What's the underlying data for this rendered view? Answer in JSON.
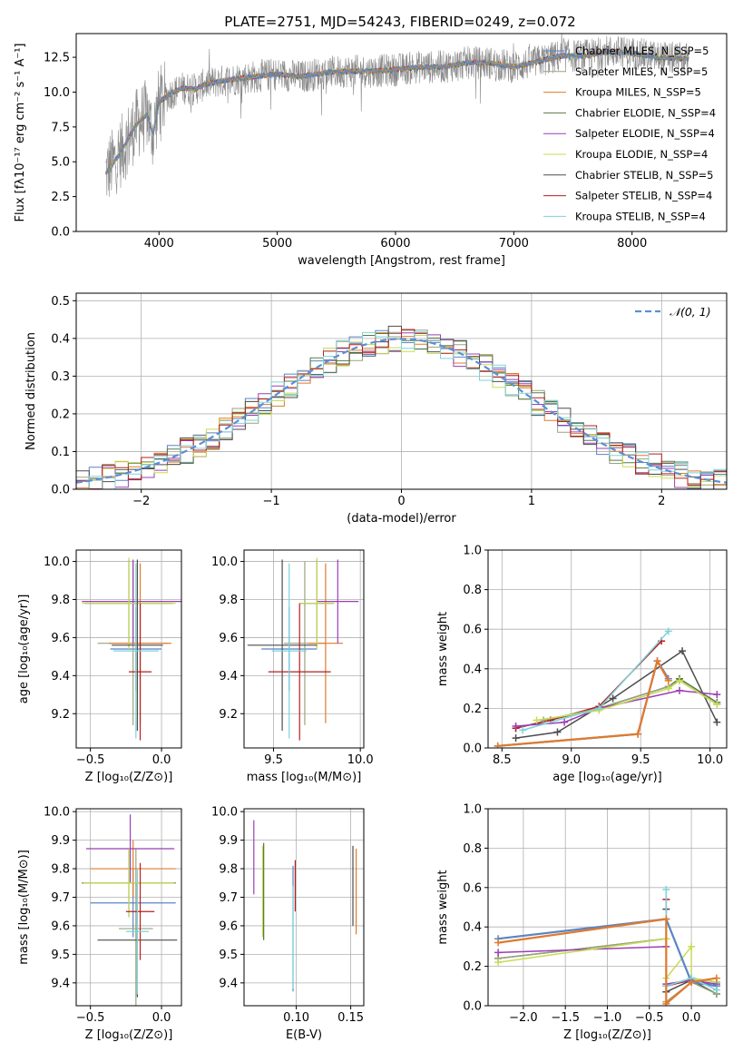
{
  "title": "PLATE=2751, MJD=54243, FIBERID=0249, z=0.072",
  "model_colors": [
    "#5b84c4",
    "#9aa37d",
    "#e07a2c",
    "#5a7a45",
    "#9b3fb5",
    "#c8db55",
    "#4d4d4d",
    "#b61f1f",
    "#7dd3dc"
  ],
  "gauss_color": "#5b8fd6",
  "chart_data": [
    {
      "type": "line",
      "panel": "spectrum",
      "xlabel": "wavelength [Angstrom, rest frame]",
      "ylabel": "Flux [fλ10⁻¹⁷ erg cm⁻² s⁻¹ A⁻¹]",
      "xlim": [
        3300,
        8800
      ],
      "ylim": [
        0,
        14.2
      ],
      "xticks": [
        4000,
        5000,
        6000,
        7000,
        8000
      ],
      "yticks": [
        0.0,
        2.5,
        5.0,
        7.5,
        10.0,
        12.5
      ],
      "ytick_labels": [
        "0.0",
        "2.5",
        "5.0",
        "7.5",
        "10.0",
        "12.5"
      ],
      "legend_position": "lower-right",
      "legend": [
        "Chabrier MILES, N_SSP=5",
        "Salpeter MILES, N_SSP=5",
        "Kroupa MILES, N_SSP=5",
        "Chabrier ELODIE, N_SSP=4",
        "Salpeter ELODIE, N_SSP=4",
        "Kroupa ELODIE, N_SSP=4",
        "Chabrier STELIB, N_SSP=5",
        "Salpeter STELIB, N_SSP=4",
        "Kroupa STELIB, N_SSP=4"
      ],
      "model_curve": {
        "x": [
          3550,
          3620,
          3700,
          3800,
          3900,
          3950,
          4000,
          4100,
          4200,
          4300,
          4400,
          4600,
          4800,
          5000,
          5200,
          5400,
          5600,
          5800,
          6000,
          6200,
          6400,
          6600,
          6800,
          7000,
          7200,
          7400,
          7600,
          7800,
          8000,
          8200,
          8400
        ],
        "y": [
          4.2,
          5.0,
          6.0,
          7.6,
          8.4,
          7.0,
          9.3,
          9.9,
          10.3,
          10.2,
          10.6,
          10.9,
          11.1,
          11.3,
          11.1,
          11.4,
          11.5,
          11.5,
          11.6,
          11.8,
          11.8,
          12.1,
          12.1,
          11.8,
          12.2,
          12.6,
          12.6,
          12.9,
          12.8,
          12.5,
          12.4
        ]
      },
      "data_noise": 1.2
    },
    {
      "type": "line",
      "panel": "residual histogram",
      "xlabel": "(data-model)/error",
      "ylabel": "Normed distribution",
      "xlim": [
        -2.5,
        2.5
      ],
      "ylim": [
        0,
        0.52
      ],
      "xticks": [
        -2,
        -1,
        0,
        1,
        2
      ],
      "xtick_labels": [
        "−2",
        "−1",
        "0",
        "1",
        "2"
      ],
      "yticks": [
        0.0,
        0.1,
        0.2,
        0.3,
        0.4,
        0.5
      ],
      "ytick_labels": [
        "0.0",
        "0.1",
        "0.2",
        "0.3",
        "0.4",
        "0.5"
      ],
      "legend": [
        "𝒩(0, 1)"
      ],
      "legend_position": "top-right",
      "bin_width": 0.1,
      "jitter": 0.035
    },
    {
      "type": "scatter",
      "panel": "age vs Z",
      "xlabel": "Z [log₁₀(Z/Z⊙)]",
      "ylabel": "age  [log₁₀(age/yr)]",
      "xlim": [
        -0.6,
        0.14
      ],
      "ylim": [
        9.02,
        10.06
      ],
      "xticks": [
        -0.5,
        0.0
      ],
      "xtick_labels": [
        "−0.5",
        "0.0"
      ],
      "yticks": [
        9.2,
        9.4,
        9.6,
        9.8,
        10.0
      ],
      "ytick_labels": [
        "9.2",
        "9.4",
        "9.6",
        "9.8",
        "10.0"
      ],
      "points": [
        {
          "x": -0.18,
          "y": 9.54,
          "xerr": 0.18,
          "yerr": 0.22
        },
        {
          "x": -0.2,
          "y": 9.57,
          "xerr": 0.25,
          "yerr": 0.43
        },
        {
          "x": -0.15,
          "y": 9.57,
          "xerr": 0.22,
          "yerr": 0.42
        },
        {
          "x": -0.23,
          "y": 9.78,
          "xerr": 0.31,
          "yerr": 0.23
        },
        {
          "x": -0.2,
          "y": 9.79,
          "xerr": 0.36,
          "yerr": 0.22
        },
        {
          "x": -0.23,
          "y": 9.78,
          "xerr": 0.33,
          "yerr": 0.24
        },
        {
          "x": -0.17,
          "y": 9.56,
          "xerr": 0.18,
          "yerr": 0.45
        },
        {
          "x": -0.15,
          "y": 9.42,
          "xerr": 0.08,
          "yerr": 0.36
        },
        {
          "x": -0.18,
          "y": 9.53,
          "xerr": 0.16,
          "yerr": 0.46
        }
      ]
    },
    {
      "type": "scatter",
      "panel": "age vs mass",
      "xlabel": "mass [log₁₀(M/M⊙)]",
      "ylabel": "",
      "xlim": [
        9.33,
        10.02
      ],
      "ylim": [
        9.02,
        10.06
      ],
      "xticks": [
        9.5,
        10.0
      ],
      "xtick_labels": [
        "9.5",
        "10.0"
      ],
      "yticks": [
        9.2,
        9.4,
        9.6,
        9.8,
        10.0
      ],
      "ytick_labels": [
        "9.2",
        "9.4",
        "9.6",
        "9.8",
        "10.0"
      ],
      "points": [
        {
          "x": 9.59,
          "y": 9.54,
          "xerr": 0.16,
          "yerr": 0.22
        },
        {
          "x": 9.68,
          "y": 9.57,
          "xerr": 0.12,
          "yerr": 0.43
        },
        {
          "x": 9.8,
          "y": 9.57,
          "xerr": 0.1,
          "yerr": 0.42
        },
        {
          "x": 9.75,
          "y": 9.78,
          "xerr": 0.1,
          "yerr": 0.23
        },
        {
          "x": 9.87,
          "y": 9.79,
          "xerr": 0.12,
          "yerr": 0.22
        },
        {
          "x": 9.75,
          "y": 9.78,
          "xerr": 0.1,
          "yerr": 0.24
        },
        {
          "x": 9.55,
          "y": 9.56,
          "xerr": 0.2,
          "yerr": 0.45
        },
        {
          "x": 9.65,
          "y": 9.42,
          "xerr": 0.18,
          "yerr": 0.36
        },
        {
          "x": 9.59,
          "y": 9.53,
          "xerr": 0.1,
          "yerr": 0.46
        }
      ]
    },
    {
      "type": "line",
      "panel": "mass weight vs age",
      "xlabel": "age  [log₁₀(age/yr)]",
      "ylabel": "mass weight",
      "xlim": [
        8.4,
        10.12
      ],
      "ylim": [
        0,
        1.0
      ],
      "xticks": [
        8.5,
        9.0,
        9.5,
        10.0
      ],
      "xtick_labels": [
        "8.5",
        "9.0",
        "9.5",
        "10.0"
      ],
      "yticks": [
        0.0,
        0.2,
        0.4,
        0.6,
        0.8,
        1.0
      ],
      "ytick_labels": [
        "0.0",
        "0.2",
        "0.4",
        "0.6",
        "0.8",
        "1.0"
      ],
      "series": [
        {
          "x": [
            8.47,
            9.48,
            9.62,
            9.7
          ],
          "y": [
            0.01,
            0.07,
            0.44,
            0.35
          ]
        },
        {
          "x": [
            8.8,
            9.2,
            9.7,
            9.78,
            10.05
          ],
          "y": [
            0.14,
            0.2,
            0.31,
            0.34,
            0.22
          ]
        },
        {
          "x": [
            8.47,
            9.48,
            9.62,
            9.7
          ],
          "y": [
            0.01,
            0.07,
            0.44,
            0.34
          ]
        },
        {
          "x": [
            8.6,
            9.2,
            9.7,
            9.78,
            10.05
          ],
          "y": [
            0.1,
            0.2,
            0.31,
            0.35,
            0.23
          ]
        },
        {
          "x": [
            8.6,
            8.95,
            9.2,
            9.78,
            10.05
          ],
          "y": [
            0.11,
            0.13,
            0.2,
            0.29,
            0.27
          ]
        },
        {
          "x": [
            8.75,
            9.2,
            9.7,
            9.78,
            10.05
          ],
          "y": [
            0.14,
            0.19,
            0.3,
            0.34,
            0.22
          ]
        },
        {
          "x": [
            8.6,
            8.9,
            9.3,
            9.8,
            10.05
          ],
          "y": [
            0.05,
            0.08,
            0.25,
            0.49,
            0.13
          ]
        },
        {
          "x": [
            8.6,
            8.85,
            9.2,
            9.65
          ],
          "y": [
            0.1,
            0.14,
            0.21,
            0.54
          ]
        },
        {
          "x": [
            8.65,
            9.2,
            9.7
          ],
          "y": [
            0.09,
            0.2,
            0.59
          ]
        }
      ]
    },
    {
      "type": "scatter",
      "panel": "mass vs Z",
      "xlabel": "Z [log₁₀(Z/Z⊙)]",
      "ylabel": "mass [log₁₀(M/M⊙)]",
      "xlim": [
        -0.6,
        0.14
      ],
      "ylim": [
        9.32,
        10.01
      ],
      "xticks": [
        -0.5,
        0.0
      ],
      "xtick_labels": [
        "−0.5",
        "0.0"
      ],
      "yticks": [
        9.4,
        9.5,
        9.6,
        9.7,
        9.8,
        9.9,
        10.0
      ],
      "ytick_labels": [
        "9.4",
        "9.5",
        "9.6",
        "9.7",
        "9.8",
        "9.9",
        "10.0"
      ],
      "points": [
        {
          "x": -0.2,
          "y": 9.68,
          "xerr": 0.3,
          "yerr": 0.12
        },
        {
          "x": -0.18,
          "y": 9.59,
          "xerr": 0.12,
          "yerr": 0.28
        },
        {
          "x": -0.2,
          "y": 9.8,
          "xerr": 0.3,
          "yerr": 0.1
        },
        {
          "x": -0.23,
          "y": 9.75,
          "xerr": 0.33,
          "yerr": 0.12
        },
        {
          "x": -0.22,
          "y": 9.87,
          "xerr": 0.31,
          "yerr": 0.12
        },
        {
          "x": -0.23,
          "y": 9.75,
          "xerr": 0.32,
          "yerr": 0.12
        },
        {
          "x": -0.17,
          "y": 9.55,
          "xerr": 0.28,
          "yerr": 0.2
        },
        {
          "x": -0.15,
          "y": 9.65,
          "xerr": 0.1,
          "yerr": 0.17
        },
        {
          "x": -0.17,
          "y": 9.58,
          "xerr": 0.08,
          "yerr": 0.22
        }
      ]
    },
    {
      "type": "scatter",
      "panel": "mass vs E(B-V)",
      "xlabel": "E(B-V)",
      "ylabel": "",
      "xlim": [
        0.052,
        0.162
      ],
      "ylim": [
        9.32,
        10.01
      ],
      "xticks": [
        0.1,
        0.15
      ],
      "xtick_labels": [
        "0.10",
        "0.15"
      ],
      "yticks": [
        9.4,
        9.5,
        9.6,
        9.7,
        9.8,
        9.9,
        10.0
      ],
      "ytick_labels": [
        "9.4",
        "9.5",
        "9.6",
        "9.7",
        "9.8",
        "9.9",
        "10.0"
      ],
      "points": [
        {
          "x": 0.097,
          "y": 9.59,
          "xerr": 0,
          "yerr": 0.22
        },
        {
          "x": 0.07,
          "y": 9.72,
          "xerr": 0,
          "yerr": 0.17
        },
        {
          "x": 0.155,
          "y": 9.72,
          "xerr": 0,
          "yerr": 0.15
        },
        {
          "x": 0.07,
          "y": 9.72,
          "xerr": 0,
          "yerr": 0.17
        },
        {
          "x": 0.061,
          "y": 9.84,
          "xerr": 0,
          "yerr": 0.13
        },
        {
          "x": 0.069,
          "y": 9.72,
          "xerr": 0,
          "yerr": 0.16
        },
        {
          "x": 0.152,
          "y": 9.74,
          "xerr": 0,
          "yerr": 0.14
        },
        {
          "x": 0.099,
          "y": 9.74,
          "xerr": 0,
          "yerr": 0.09
        },
        {
          "x": 0.097,
          "y": 9.56,
          "xerr": 0,
          "yerr": 0.18
        }
      ]
    },
    {
      "type": "line",
      "panel": "mass weight vs Z",
      "xlabel": "Z [log₁₀(Z/Z⊙)]",
      "ylabel": "mass weight",
      "xlim": [
        -2.42,
        0.42
      ],
      "ylim": [
        0,
        1.0
      ],
      "xticks": [
        -2.0,
        -1.5,
        -1.0,
        -0.5,
        0.0
      ],
      "xtick_labels": [
        "−2.0",
        "−1.5",
        "−1.0",
        "−0.5",
        "0.0"
      ],
      "yticks": [
        0.0,
        0.2,
        0.4,
        0.6,
        0.8,
        1.0
      ],
      "ytick_labels": [
        "0.0",
        "0.2",
        "0.4",
        "0.6",
        "0.8",
        "1.0"
      ],
      "series": [
        {
          "x": [
            -2.3,
            -0.3,
            0.0,
            0.3
          ],
          "y": [
            0.34,
            0.44,
            0.12,
            0.1
          ]
        },
        {
          "x": [
            -2.3,
            -0.3,
            -0.3,
            0.0,
            0.3
          ],
          "y": [
            0.24,
            0.34,
            0.02,
            0.12,
            0.06
          ]
        },
        {
          "x": [
            -2.3,
            -0.3,
            -0.3,
            0.0,
            0.3
          ],
          "y": [
            0.32,
            0.44,
            0.01,
            0.12,
            0.14
          ]
        },
        {
          "x": [
            -2.3,
            -0.3,
            -0.3,
            0.0,
            0.3
          ],
          "y": [
            0.24,
            0.34,
            0.1,
            0.14,
            0.12
          ]
        },
        {
          "x": [
            -2.3,
            -0.3,
            -0.3,
            0.0,
            0.3
          ],
          "y": [
            0.27,
            0.3,
            0.11,
            0.13,
            0.11
          ]
        },
        {
          "x": [
            -2.3,
            -0.3,
            -0.3,
            0.0,
            0.0,
            0.3
          ],
          "y": [
            0.22,
            0.34,
            0.14,
            0.3,
            0.14,
            0.12
          ]
        },
        {
          "x": [
            -0.3,
            -0.3,
            0.0,
            0.3
          ],
          "y": [
            0.49,
            0.07,
            0.13,
            0.06
          ]
        },
        {
          "x": [
            -0.3,
            -0.3,
            0.0,
            0.3
          ],
          "y": [
            0.54,
            0.1,
            0.13,
            0.1
          ]
        },
        {
          "x": [
            -0.3,
            -0.3,
            0.0,
            0.3
          ],
          "y": [
            0.59,
            0.1,
            0.14,
            0.08
          ]
        }
      ]
    }
  ]
}
